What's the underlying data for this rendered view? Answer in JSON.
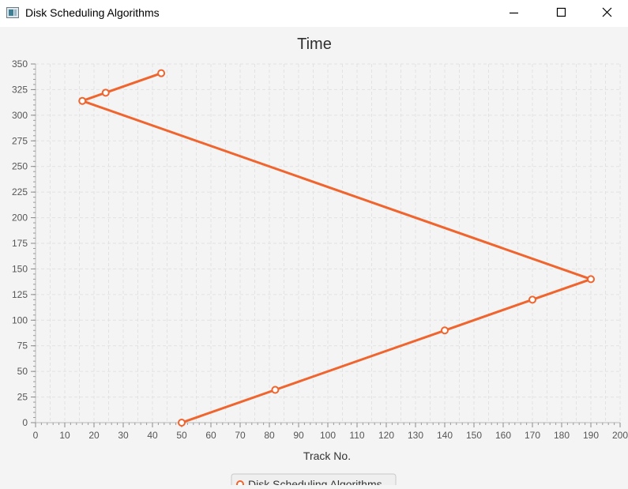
{
  "window": {
    "title": "Disk Scheduling Algorithms"
  },
  "chart_data": {
    "type": "line",
    "title": "Time",
    "xlabel": "Track No.",
    "ylabel": "",
    "xlim": [
      0,
      200
    ],
    "ylim": [
      0,
      350
    ],
    "x_ticks": [
      0,
      10,
      20,
      30,
      40,
      50,
      60,
      70,
      80,
      90,
      100,
      110,
      120,
      130,
      140,
      150,
      160,
      170,
      180,
      190,
      200
    ],
    "y_ticks": [
      0,
      25,
      50,
      75,
      100,
      125,
      150,
      175,
      200,
      225,
      250,
      275,
      300,
      325,
      350
    ],
    "grid": true,
    "legend_position": "bottom-center",
    "series": [
      {
        "name": "Disk Scheduling Algorithms",
        "color": "#f0642e",
        "points": [
          {
            "x": 50,
            "y": 0
          },
          {
            "x": 82,
            "y": 32
          },
          {
            "x": 140,
            "y": 90
          },
          {
            "x": 170,
            "y": 120
          },
          {
            "x": 190,
            "y": 140
          },
          {
            "x": 16,
            "y": 314
          },
          {
            "x": 24,
            "y": 322
          },
          {
            "x": 43,
            "y": 341
          }
        ]
      }
    ]
  }
}
